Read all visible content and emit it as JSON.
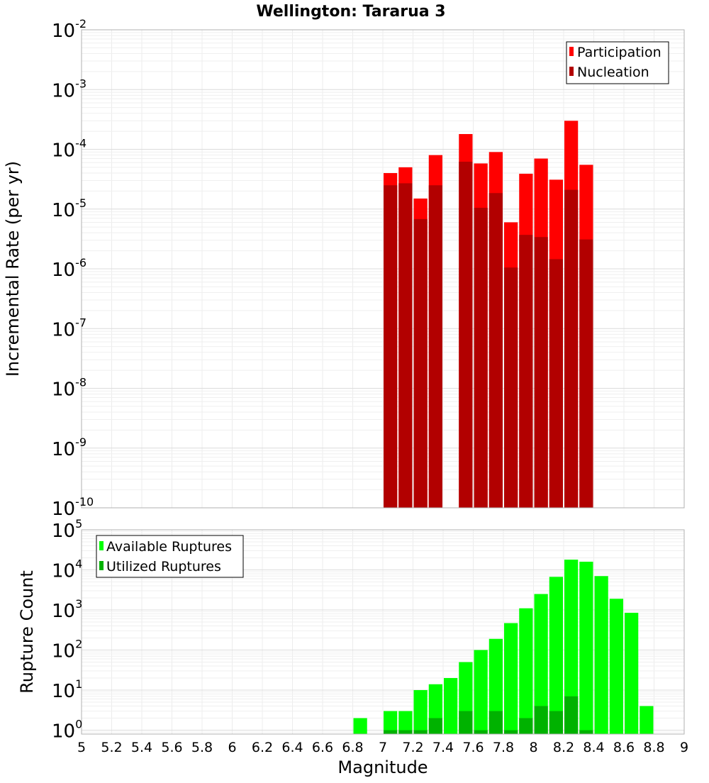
{
  "chart_data": [
    {
      "type": "bar",
      "title": "Wellington: Tararua 3",
      "xlabel": "",
      "ylabel": "Incremental Rate (per yr)",
      "y_scale": "log",
      "ylim": [
        1e-10,
        0.01
      ],
      "xlim": [
        5,
        9
      ],
      "bar_width": 0.1,
      "grid": true,
      "legend_position": "top-right",
      "y_tick_labels": [
        "10^-10",
        "10^-9",
        "10^-8",
        "10^-7",
        "10^-6",
        "10^-5",
        "10^-4",
        "10^-3",
        "10^-2"
      ],
      "x": [
        7.05,
        7.15,
        7.25,
        7.35,
        7.55,
        7.65,
        7.75,
        7.85,
        7.95,
        8.05,
        8.15,
        8.25,
        8.35
      ],
      "series": [
        {
          "name": "Participation",
          "color": "#ff0000",
          "values": [
            4e-05,
            5e-05,
            1.5e-05,
            8e-05,
            0.00018,
            5.8e-05,
            9e-05,
            6e-06,
            3.9e-05,
            7e-05,
            3.1e-05,
            0.0003,
            5.5e-05
          ]
        },
        {
          "name": "Nucleation",
          "color": "#b20000",
          "values": [
            2.5e-05,
            2.7e-05,
            6.8e-06,
            2.5e-05,
            6.2e-05,
            1.05e-05,
            1.85e-05,
            1.05e-06,
            3.7e-06,
            3.4e-06,
            1.45e-06,
            2.1e-05,
            3.1e-06
          ]
        }
      ]
    },
    {
      "type": "bar",
      "title": "",
      "xlabel": "Magnitude",
      "ylabel": "Rupture Count",
      "y_scale": "log",
      "ylim": [
        0.8,
        100000
      ],
      "xlim": [
        5,
        9
      ],
      "bar_width": 0.1,
      "grid": true,
      "legend_position": "top-left",
      "y_tick_labels": [
        "10^0",
        "10^1",
        "10^2",
        "10^3",
        "10^4",
        "10^5"
      ],
      "x_tick_labels": [
        "5",
        "5.2",
        "5.4",
        "5.6",
        "5.8",
        "6",
        "6.2",
        "6.4",
        "6.6",
        "6.8",
        "7",
        "7.2",
        "7.4",
        "7.6",
        "7.8",
        "8",
        "8.2",
        "8.4",
        "8.6",
        "8.8",
        "9"
      ],
      "series": [
        {
          "name": "Available Ruptures",
          "color": "#00ff00",
          "x": [
            6.85,
            7.05,
            7.15,
            7.25,
            7.35,
            7.45,
            7.55,
            7.65,
            7.75,
            7.85,
            7.95,
            8.05,
            8.15,
            8.25,
            8.35,
            8.45,
            8.55,
            8.65,
            8.75
          ],
          "values": [
            2,
            3,
            3,
            10,
            14,
            20,
            50,
            100,
            190,
            470,
            1100,
            2500,
            6700,
            18000,
            16000,
            7000,
            1900,
            850,
            4
          ]
        },
        {
          "name": "Utilized Ruptures",
          "color": "#00b200",
          "x": [
            7.05,
            7.15,
            7.25,
            7.35,
            7.55,
            7.65,
            7.75,
            7.85,
            7.95,
            8.05,
            8.15,
            8.25,
            8.35
          ],
          "values": [
            1,
            1,
            1,
            2,
            3,
            1,
            3,
            1,
            2,
            4,
            3,
            7,
            1
          ]
        }
      ]
    }
  ]
}
